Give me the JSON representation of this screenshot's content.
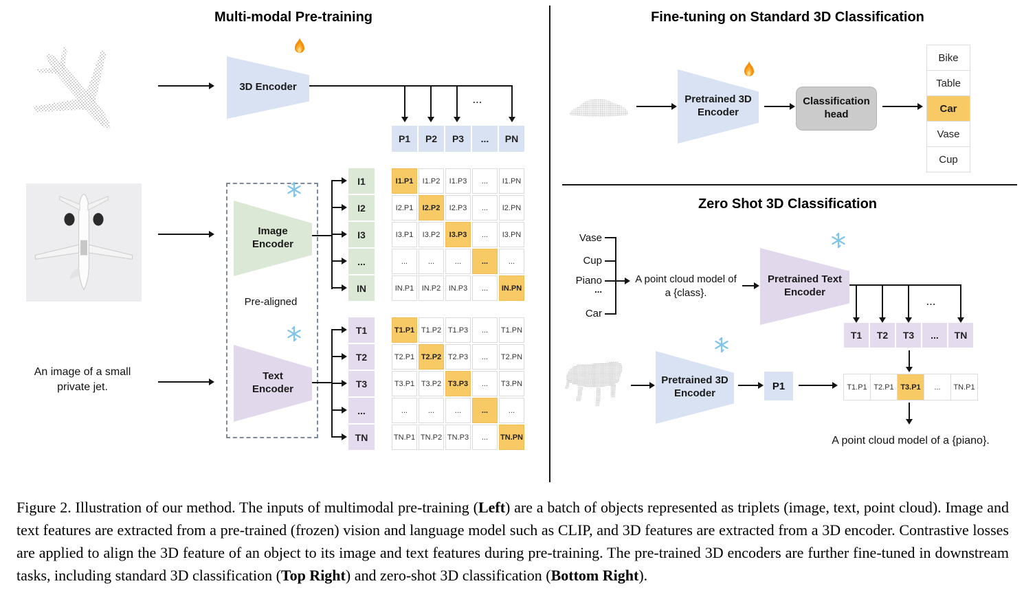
{
  "palette": {
    "blue": "#D9E2F3",
    "green": "#DBE8D5",
    "purple": "#E4DBEE",
    "orange": "#F8CA66",
    "head_gray": "#CBCBCB",
    "flame": "#F4900C",
    "snowflake": "#7FC4EA"
  },
  "icons": {
    "trainable": "fire-icon",
    "frozen": "snowflake-icon"
  },
  "pretraining": {
    "title": "Multi-modal Pre-training",
    "encoder_3d": "3D Encoder",
    "image_encoder": "Image Encoder",
    "text_encoder": "Text Encoder",
    "pre_aligned": "Pre-aligned",
    "input_text": "An image of a small private jet.",
    "p_row": [
      "P1",
      "P2",
      "P3",
      "...",
      "PN"
    ],
    "p_row_dots": "...",
    "i_labels": [
      "I1",
      "I2",
      "I3",
      "...",
      "IN"
    ],
    "i_matrix": [
      [
        "I1.P1",
        "I1.P2",
        "I1.P3",
        "...",
        "I1.PN"
      ],
      [
        "I2.P1",
        "I2.P2",
        "I2.P3",
        "...",
        "I2.PN"
      ],
      [
        "I3.P1",
        "I3.P2",
        "I3.P3",
        "...",
        "I3.PN"
      ],
      [
        "...",
        "...",
        "...",
        "...",
        "..."
      ],
      [
        "IN.P1",
        "IN.P2",
        "IN.P3",
        "...",
        "IN.PN"
      ]
    ],
    "t_labels": [
      "T1",
      "T2",
      "T3",
      "...",
      "TN"
    ],
    "t_matrix": [
      [
        "T1.P1",
        "T1.P2",
        "T1.P3",
        "...",
        "T1.PN"
      ],
      [
        "T2.P1",
        "T2.P2",
        "T2.P3",
        "...",
        "T2.PN"
      ],
      [
        "T3.P1",
        "T3.P2",
        "T3.P3",
        "...",
        "T3.PN"
      ],
      [
        "...",
        "...",
        "...",
        "...",
        "..."
      ],
      [
        "TN.P1",
        "TN.P2",
        "TN.P3",
        "...",
        "TN.PN"
      ]
    ]
  },
  "finetune": {
    "title": "Fine-tuning on Standard 3D Classification",
    "encoder": "Pretrained 3D Encoder",
    "head": "Classification head",
    "classes": [
      "Bike",
      "Table",
      "Car",
      "Vase",
      "Cup"
    ],
    "predicted_class": "Car"
  },
  "zeroshot": {
    "title": "Zero Shot 3D Classification",
    "class_list": [
      "Vase",
      "Cup",
      "Piano",
      "...",
      "Car"
    ],
    "prompt": "A point cloud model of a {class}.",
    "text_encoder": "Pretrained Text Encoder",
    "encoder_3d": "Pretrained 3D Encoder",
    "p_cell": "P1",
    "t_row": [
      "T1",
      "T2",
      "T3",
      "...",
      "TN"
    ],
    "t_row_dots": "...",
    "tp_row": [
      "T1.P1",
      "T2.P1",
      "T3.P1",
      "...",
      "TN.P1"
    ],
    "highlighted_cell": "T3.P1",
    "result_prompt": "A point cloud model of a {piano}."
  },
  "caption": {
    "segments": [
      {
        "text": "Figure 2. Illustration of our method. The inputs of multimodal pre-training (",
        "bold": false
      },
      {
        "text": "Left",
        "bold": true
      },
      {
        "text": ") are a batch of objects represented as triplets (image, text, point cloud). Image and text features are extracted from a pre-trained (frozen) vision and language model such as CLIP, and 3D features are extracted from a 3D encoder. Contrastive losses are applied to align the 3D feature of an object to its image and text features during pre-training. The pre-trained 3D encoders are further fine-tuned in downstream tasks, including standard 3D classification (",
        "bold": false
      },
      {
        "text": "Top Right",
        "bold": true
      },
      {
        "text": ") and zero-shot 3D classification (",
        "bold": false
      },
      {
        "text": "Bottom Right",
        "bold": true
      },
      {
        "text": ").",
        "bold": false
      }
    ]
  }
}
